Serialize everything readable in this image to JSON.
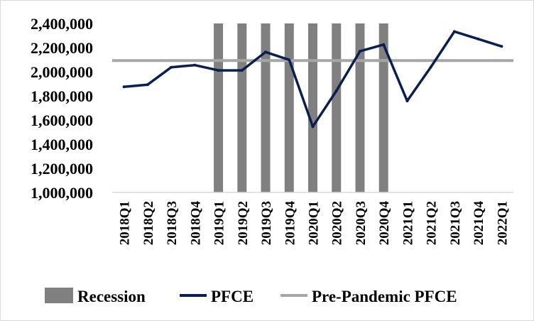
{
  "chart_data": {
    "type": "line",
    "title": "",
    "xlabel": "",
    "ylabel": "",
    "ylim": [
      1000000,
      2400000
    ],
    "y_ticks": [
      "1,000,000",
      "1,200,000",
      "1,400,000",
      "1,600,000",
      "1,800,000",
      "2,000,000",
      "2,200,000",
      "2,400,000"
    ],
    "categories": [
      "2018Q1",
      "2018Q2",
      "2018Q3",
      "2018Q4",
      "2019Q1",
      "2019Q2",
      "2019Q3",
      "2019Q4",
      "2020Q1",
      "2020Q2",
      "2020Q3",
      "2020Q4",
      "2021Q1",
      "2021Q2",
      "2021Q3",
      "2021Q4",
      "2022Q1"
    ],
    "series": [
      {
        "name": "Recession",
        "type": "bar",
        "color": "#808080",
        "values": [
          null,
          null,
          null,
          null,
          2400000,
          2400000,
          2400000,
          2400000,
          2400000,
          2400000,
          2400000,
          2400000,
          null,
          null,
          null,
          null,
          null
        ]
      },
      {
        "name": "PFCE",
        "type": "line",
        "color": "#0b1f4f",
        "values": [
          1875000,
          1893000,
          2037000,
          2055000,
          2011000,
          2011000,
          2163000,
          2098000,
          1545000,
          1842000,
          2170000,
          2225000,
          1758000,
          2038000,
          2333000,
          2272000,
          2210000
        ]
      },
      {
        "name": "Pre-Pandemic PFCE",
        "type": "line",
        "color": "#a6a6a6",
        "values": [
          2093000,
          2093000,
          2093000,
          2093000,
          2093000,
          2093000,
          2093000,
          2093000,
          2093000,
          2093000,
          2093000,
          2093000,
          2093000,
          2093000,
          2093000,
          2093000,
          2093000
        ]
      }
    ],
    "legend": [
      "Recession",
      "PFCE",
      "Pre-Pandemic PFCE"
    ],
    "legend_position": "bottom",
    "grid": false
  }
}
